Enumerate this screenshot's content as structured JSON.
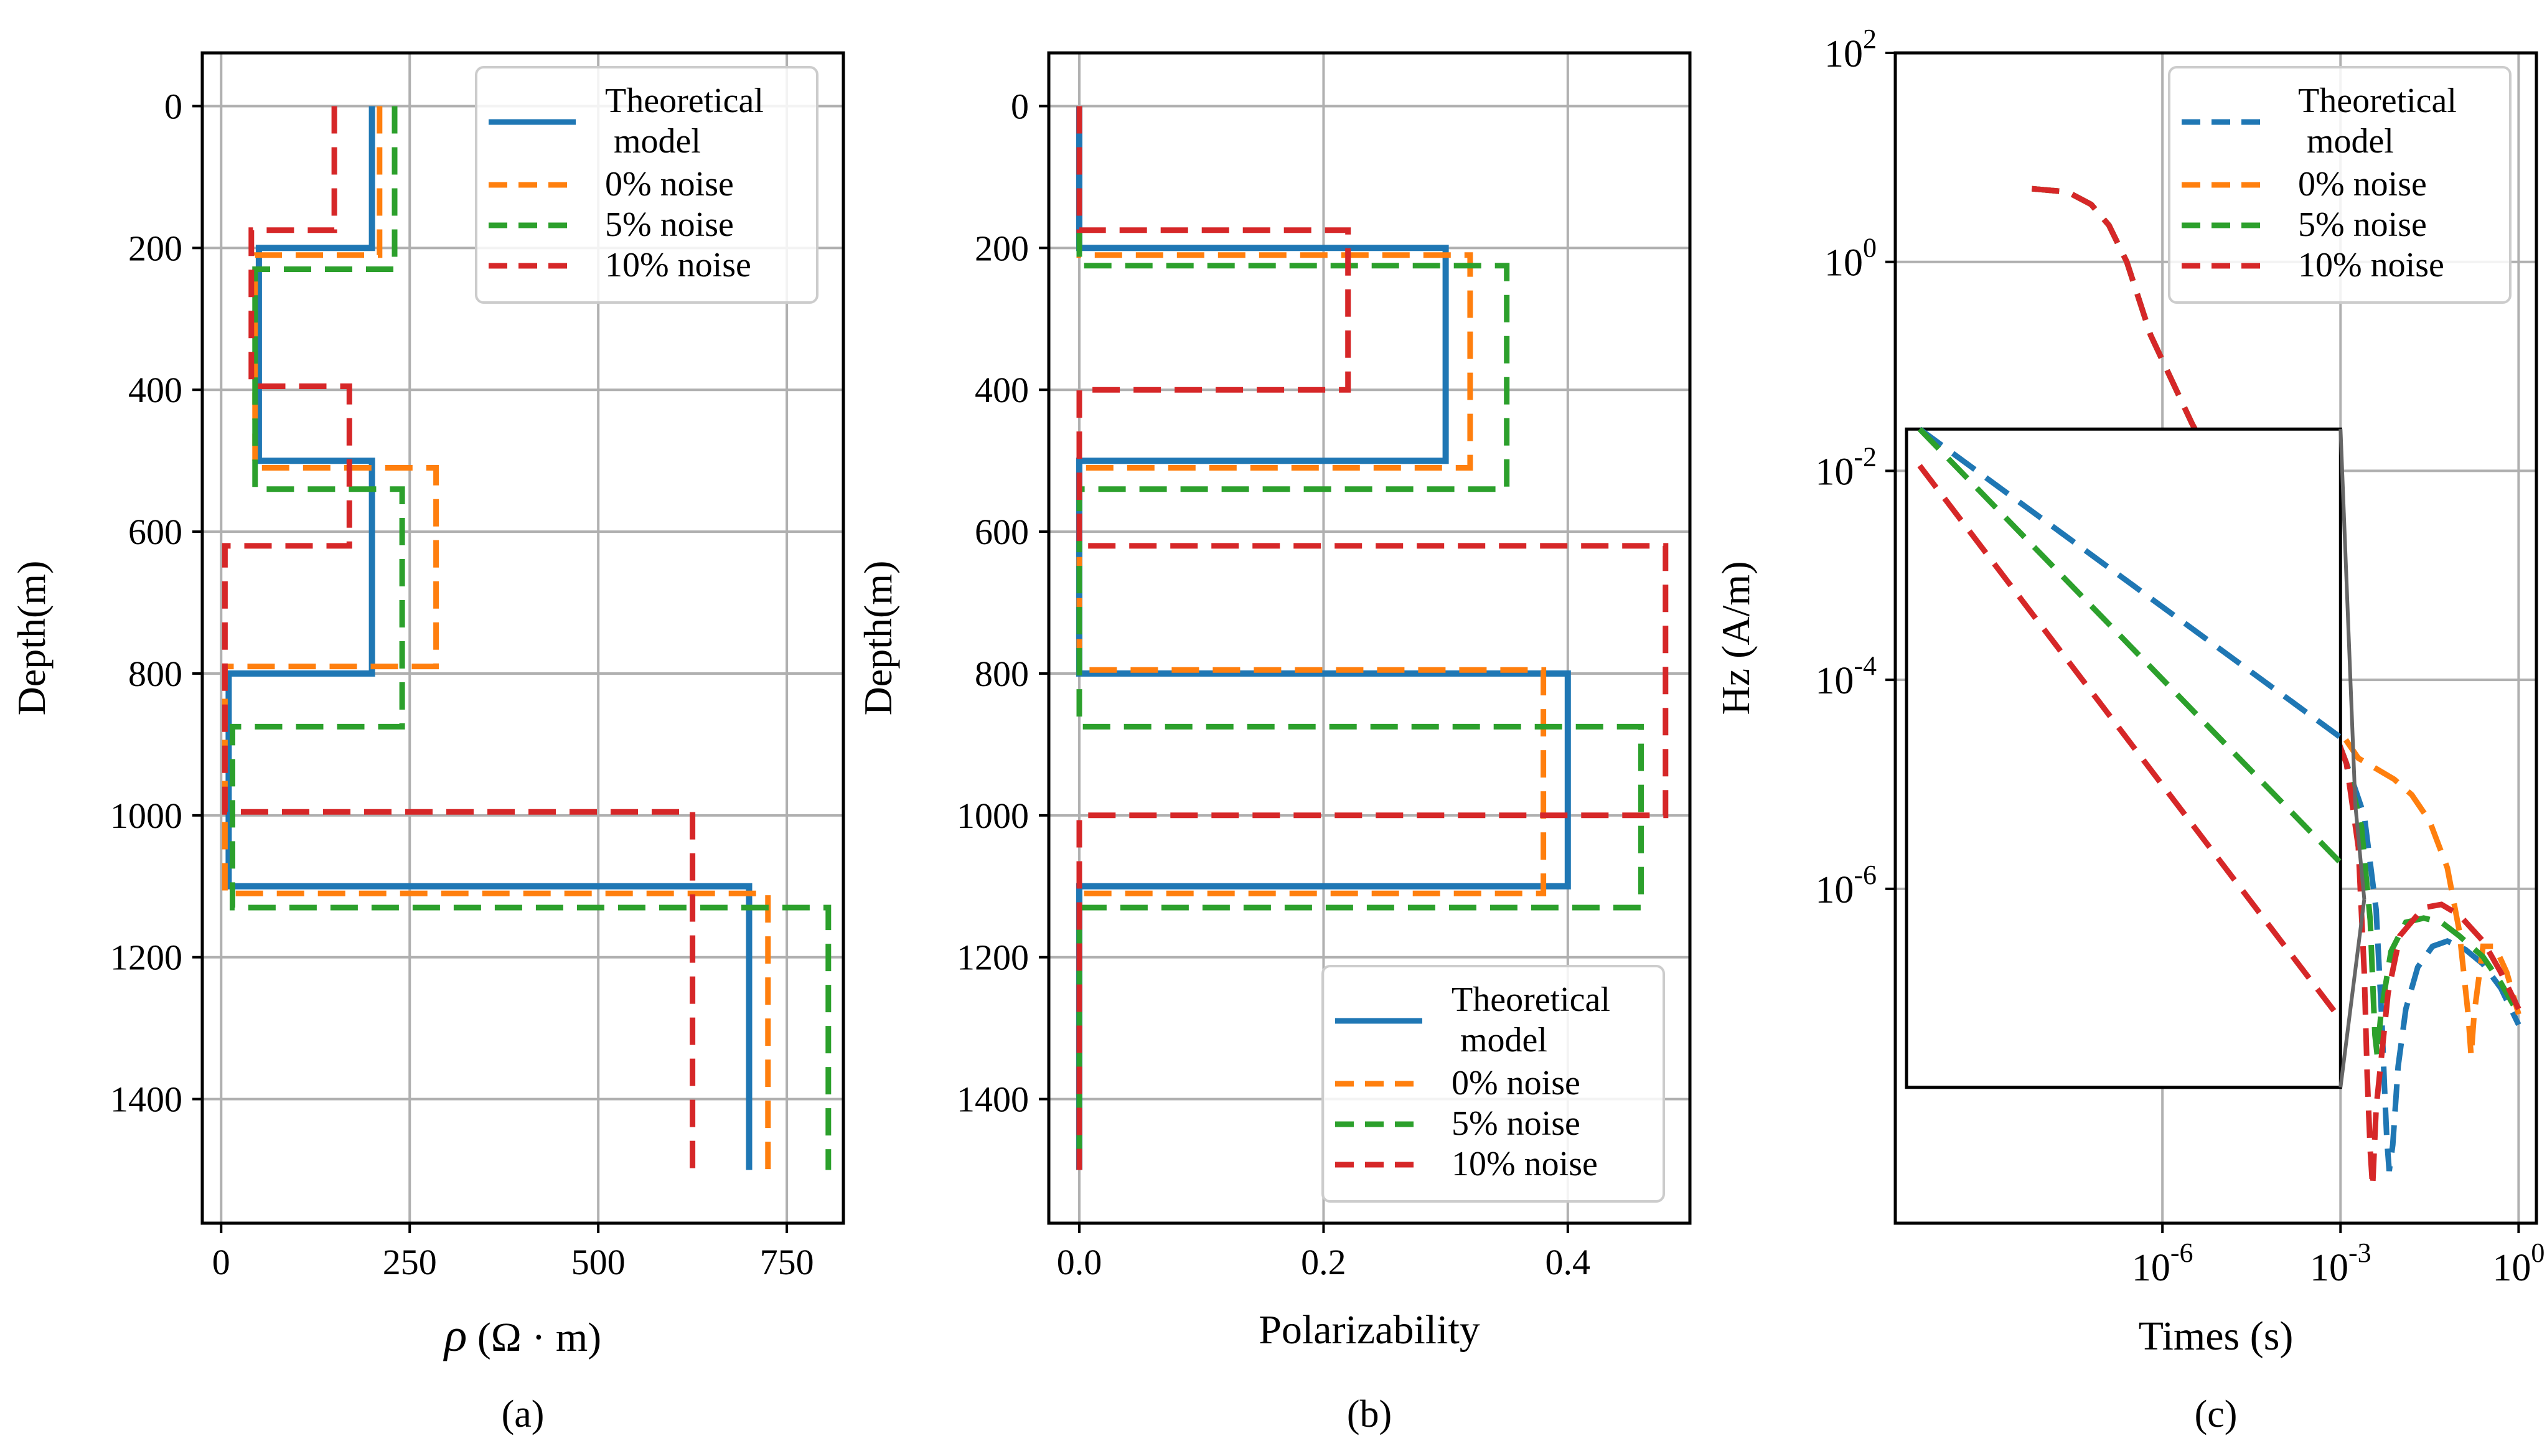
{
  "colors": {
    "theoretical": "#1f77b4",
    "n0": "#ff7f0e",
    "n5": "#2ca02c",
    "n10": "#d62728",
    "grid": "#b0b0b0",
    "axis": "#000000"
  },
  "legend_entries": [
    {
      "key": "theoretical",
      "line1": "Theoretical",
      "line2": " model"
    },
    {
      "key": "n0",
      "line1": "0% noise"
    },
    {
      "key": "n5",
      "line1": "5% noise"
    },
    {
      "key": "n10",
      "line1": "10% noise"
    }
  ],
  "chart_data": [
    {
      "type": "line",
      "panel": "(a)",
      "xlabel_symbol": "ρ",
      "xlabel_unit": " (Ω · m)",
      "ylabel": "Depth(m)",
      "xlim": [
        -25,
        825
      ],
      "ylim": [
        1575,
        -75
      ],
      "y_inverted": true,
      "xticks": [
        0,
        250,
        500,
        750
      ],
      "yticks": [
        0,
        200,
        400,
        600,
        800,
        1000,
        1200,
        1400
      ],
      "grid": true,
      "legend_position": "top-right",
      "series": [
        {
          "key": "theoretical",
          "name": "Theoretical model",
          "style": "solid",
          "points": [
            [
              200,
              0
            ],
            [
              200,
              200
            ],
            [
              50,
              200
            ],
            [
              50,
              500
            ],
            [
              200,
              500
            ],
            [
              200,
              800
            ],
            [
              10,
              800
            ],
            [
              10,
              1100
            ],
            [
              700,
              1100
            ],
            [
              700,
              1500
            ]
          ]
        },
        {
          "key": "n0",
          "name": "0% noise",
          "style": "dashed",
          "points": [
            [
              210,
              0
            ],
            [
              210,
              210
            ],
            [
              45,
              210
            ],
            [
              45,
              510
            ],
            [
              285,
              510
            ],
            [
              285,
              790
            ],
            [
              5,
              790
            ],
            [
              5,
              1110
            ],
            [
              725,
              1110
            ],
            [
              725,
              1500
            ]
          ]
        },
        {
          "key": "n5",
          "name": "5% noise",
          "style": "dashed",
          "points": [
            [
              230,
              0
            ],
            [
              230,
              230
            ],
            [
              45,
              230
            ],
            [
              45,
              540
            ],
            [
              240,
              540
            ],
            [
              240,
              875
            ],
            [
              15,
              875
            ],
            [
              15,
              1130
            ],
            [
              805,
              1130
            ],
            [
              805,
              1500
            ]
          ]
        },
        {
          "key": "n10",
          "name": "10% noise",
          "style": "dashed",
          "points": [
            [
              150,
              0
            ],
            [
              150,
              175
            ],
            [
              40,
              175
            ],
            [
              40,
              395
            ],
            [
              170,
              395
            ],
            [
              170,
              620
            ],
            [
              5,
              620
            ],
            [
              5,
              995
            ],
            [
              625,
              995
            ],
            [
              625,
              1500
            ]
          ]
        }
      ]
    },
    {
      "type": "line",
      "panel": "(b)",
      "xlabel": "Polarizability",
      "ylabel": "Depth(m)",
      "xlim": [
        -0.025,
        0.5
      ],
      "ylim": [
        1575,
        -75
      ],
      "y_inverted": true,
      "xticks": [
        0.0,
        0.2,
        0.4
      ],
      "xtick_labels": [
        "0.0",
        "0.2",
        "0.4"
      ],
      "yticks": [
        0,
        200,
        400,
        600,
        800,
        1000,
        1200,
        1400
      ],
      "grid": true,
      "legend_position": "bottom-right",
      "series": [
        {
          "key": "theoretical",
          "name": "Theoretical model",
          "style": "solid",
          "points": [
            [
              0,
              0
            ],
            [
              0,
              200
            ],
            [
              0.3,
              200
            ],
            [
              0.3,
              500
            ],
            [
              0,
              500
            ],
            [
              0,
              800
            ],
            [
              0.4,
              800
            ],
            [
              0.4,
              1100
            ],
            [
              0,
              1100
            ],
            [
              0,
              1500
            ]
          ]
        },
        {
          "key": "n0",
          "name": "0% noise",
          "style": "dashed",
          "points": [
            [
              0,
              0
            ],
            [
              0,
              210
            ],
            [
              0.32,
              210
            ],
            [
              0.32,
              510
            ],
            [
              0,
              510
            ],
            [
              0,
              795
            ],
            [
              0.38,
              795
            ],
            [
              0.38,
              1110
            ],
            [
              0,
              1110
            ],
            [
              0,
              1500
            ]
          ]
        },
        {
          "key": "n5",
          "name": "5% noise",
          "style": "dashed",
          "points": [
            [
              0,
              0
            ],
            [
              0,
              225
            ],
            [
              0.35,
              225
            ],
            [
              0.35,
              540
            ],
            [
              0,
              540
            ],
            [
              0,
              875
            ],
            [
              0.46,
              875
            ],
            [
              0.46,
              1130
            ],
            [
              0,
              1130
            ],
            [
              0,
              1500
            ]
          ]
        },
        {
          "key": "n10",
          "name": "10% noise",
          "style": "dashed",
          "points": [
            [
              0,
              0
            ],
            [
              0,
              175
            ],
            [
              0.22,
              175
            ],
            [
              0.22,
              400
            ],
            [
              0,
              400
            ],
            [
              0,
              620
            ],
            [
              0.48,
              620
            ],
            [
              0.48,
              1000
            ],
            [
              0,
              1000
            ],
            [
              0,
              1500
            ]
          ]
        }
      ]
    },
    {
      "type": "line",
      "panel": "(c)",
      "xlabel": "Times (s)",
      "ylabel": "Hz (A/m)",
      "x_scale": "log",
      "y_scale": "log",
      "xlim_log10": [
        -10.5,
        0.3
      ],
      "ylim_log10": [
        -9.2,
        2.0
      ],
      "xtick_exponents": [
        -6,
        -3,
        0
      ],
      "ytick_exponents": [
        2,
        0,
        -2,
        -4,
        -6
      ],
      "tick_base": "10",
      "grid": true,
      "legend_position": "top-right",
      "series": [
        {
          "key": "theoretical",
          "name": "Theoretical model",
          "style": "dashed",
          "points_log10": [
            [
              -8.2,
              0.7
            ],
            [
              -7.6,
              0.67
            ],
            [
              -7.2,
              0.55
            ],
            [
              -6.9,
              0.35
            ],
            [
              -6.6,
              0.0
            ],
            [
              -6.2,
              -0.7
            ],
            [
              -5.5,
              -1.55
            ],
            [
              -4.7,
              -2.4
            ],
            [
              -4.0,
              -3.3
            ],
            [
              -3.3,
              -4.2
            ],
            [
              -2.9,
              -4.8
            ],
            [
              -2.6,
              -5.3
            ],
            [
              -2.4,
              -6.2
            ],
            [
              -2.3,
              -7.3
            ],
            [
              -2.26,
              -7.9
            ],
            [
              -2.22,
              -8.4
            ],
            [
              -2.18,
              -8.7
            ],
            [
              -2.12,
              -8.45
            ],
            [
              -2.03,
              -7.7
            ],
            [
              -1.9,
              -7.15
            ],
            [
              -1.7,
              -6.75
            ],
            [
              -1.45,
              -6.55
            ],
            [
              -1.2,
              -6.5
            ],
            [
              -0.9,
              -6.58
            ],
            [
              -0.6,
              -6.72
            ],
            [
              -0.3,
              -6.95
            ],
            [
              0,
              -7.3
            ]
          ]
        },
        {
          "key": "n0",
          "name": "0% noise",
          "style": "dashed",
          "points_log10": [
            [
              -8.2,
              0.7
            ],
            [
              -7.6,
              0.67
            ],
            [
              -7.2,
              0.55
            ],
            [
              -6.9,
              0.35
            ],
            [
              -6.6,
              0.0
            ],
            [
              -6.2,
              -0.7
            ],
            [
              -5.5,
              -1.55
            ],
            [
              -4.7,
              -2.4
            ],
            [
              -4.0,
              -3.3
            ],
            [
              -3.3,
              -4.2
            ],
            [
              -3.0,
              -4.5
            ],
            [
              -2.7,
              -4.75
            ],
            [
              -2.4,
              -4.85
            ],
            [
              -2.1,
              -4.95
            ],
            [
              -1.8,
              -5.1
            ],
            [
              -1.5,
              -5.35
            ],
            [
              -1.2,
              -5.8
            ],
            [
              -1.0,
              -6.4
            ],
            [
              -0.85,
              -7.2
            ],
            [
              -0.8,
              -7.6
            ],
            [
              -0.75,
              -7.2
            ],
            [
              -0.6,
              -6.55
            ],
            [
              -0.4,
              -6.55
            ],
            [
              -0.2,
              -6.8
            ],
            [
              0,
              -7.2
            ]
          ]
        },
        {
          "key": "n5",
          "name": "5% noise",
          "style": "dashed",
          "points_log10": [
            [
              -8.2,
              0.7
            ],
            [
              -7.6,
              0.67
            ],
            [
              -7.2,
              0.55
            ],
            [
              -6.9,
              0.35
            ],
            [
              -6.6,
              0.0
            ],
            [
              -6.2,
              -0.7
            ],
            [
              -5.5,
              -1.55
            ],
            [
              -4.7,
              -2.4
            ],
            [
              -4.0,
              -3.3
            ],
            [
              -3.3,
              -4.2
            ],
            [
              -2.9,
              -4.8
            ],
            [
              -2.65,
              -5.4
            ],
            [
              -2.5,
              -6.3
            ],
            [
              -2.45,
              -7.0
            ],
            [
              -2.42,
              -7.4
            ],
            [
              -2.38,
              -7.6
            ],
            [
              -2.32,
              -7.2
            ],
            [
              -2.15,
              -6.6
            ],
            [
              -1.9,
              -6.32
            ],
            [
              -1.6,
              -6.28
            ],
            [
              -1.3,
              -6.32
            ],
            [
              -1.0,
              -6.45
            ],
            [
              -0.6,
              -6.65
            ],
            [
              -0.3,
              -6.9
            ],
            [
              0,
              -7.2
            ]
          ]
        },
        {
          "key": "n10",
          "name": "10% noise",
          "style": "dashed",
          "points_log10": [
            [
              -8.2,
              0.7
            ],
            [
              -7.6,
              0.67
            ],
            [
              -7.2,
              0.55
            ],
            [
              -6.9,
              0.35
            ],
            [
              -6.6,
              0.0
            ],
            [
              -6.2,
              -0.7
            ],
            [
              -5.5,
              -1.55
            ],
            [
              -4.7,
              -2.4
            ],
            [
              -4.0,
              -3.3
            ],
            [
              -3.3,
              -4.2
            ],
            [
              -2.9,
              -4.8
            ],
            [
              -2.7,
              -5.6
            ],
            [
              -2.6,
              -6.8
            ],
            [
              -2.55,
              -7.8
            ],
            [
              -2.5,
              -8.5
            ],
            [
              -2.46,
              -8.85
            ],
            [
              -2.4,
              -8.1
            ],
            [
              -2.2,
              -7.0
            ],
            [
              -2.0,
              -6.45
            ],
            [
              -1.6,
              -6.18
            ],
            [
              -1.3,
              -6.15
            ],
            [
              -1.0,
              -6.25
            ],
            [
              -0.6,
              -6.5
            ],
            [
              -0.3,
              -6.8
            ],
            [
              0,
              -7.15
            ]
          ]
        }
      ],
      "inset": {
        "box_x_log10": [
          -10.5,
          -3.0
        ],
        "box_y_log10": [
          -1.6,
          -7.9
        ],
        "lines_log10": [
          {
            "key": "theoretical",
            "from": [
              -10.3,
              -1.6
            ],
            "to": [
              -3.0,
              -4.55
            ]
          },
          {
            "key": "n5",
            "from": [
              -10.3,
              -1.6
            ],
            "to": [
              -3.0,
              -5.75
            ]
          },
          {
            "key": "n10",
            "from": [
              -10.3,
              -1.95
            ],
            "to": [
              -3.0,
              -7.25
            ]
          }
        ],
        "connector_targets_log10": [
          [
            -2.75,
            -5.2
          ],
          [
            -2.6,
            -6.1
          ]
        ]
      }
    }
  ],
  "captions": [
    "(a)",
    "(b)",
    "(c)"
  ]
}
